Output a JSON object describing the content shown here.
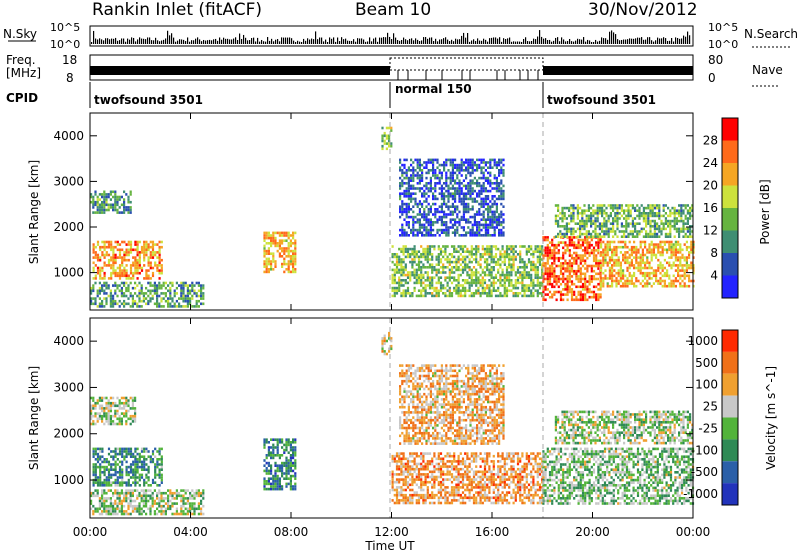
{
  "header": {
    "station": "Rankin Inlet (fitACF)",
    "beam": "Beam 10",
    "date": "30/Nov/2012"
  },
  "noise_panel": {
    "left_label": "N.Sky",
    "left_ticks": [
      "10^5",
      "10^0"
    ],
    "right_ticks": [
      "10^5",
      "10^0"
    ],
    "right_label": "N.Search"
  },
  "freq_panel": {
    "left_label_1": "Freq.",
    "left_label_2": "[MHz]",
    "left_ticks": [
      "18",
      "8"
    ],
    "right_ticks": [
      "80",
      "0"
    ],
    "right_label": "Nave"
  },
  "cpid": {
    "label": "CPID",
    "segments": [
      {
        "name": "twofsound 3501",
        "start_hour": 0,
        "end_hour": 12
      },
      {
        "name": "normal 150",
        "start_hour": 12,
        "end_hour": 18.1
      },
      {
        "name": "twofsound 3501",
        "start_hour": 18.1,
        "end_hour": 24
      }
    ]
  },
  "chart_data": [
    {
      "type": "heatmap",
      "panel": "power",
      "ylabel": "Slant Range [km]",
      "yticks": [
        "1000",
        "2000",
        "3000",
        "4000"
      ],
      "ylim": [
        180,
        4500
      ],
      "xlim": [
        0,
        24
      ],
      "colorbar_label": "Power [dB]",
      "colorbar_ticks": [
        "4",
        "8",
        "12",
        "16",
        "20",
        "24",
        "28"
      ],
      "colors": [
        "#2323ff",
        "#2a4fb0",
        "#3f8e73",
        "#66b440",
        "#cde23c",
        "#f5a623",
        "#ff6a1a",
        "#ff0000"
      ],
      "regions": [
        {
          "t0": 0.1,
          "t1": 2.9,
          "r0": 900,
          "r1": 1700,
          "intensity": 0.75
        },
        {
          "t0": 0.0,
          "t1": 1.6,
          "r0": 2300,
          "r1": 2800,
          "intensity": 0.3
        },
        {
          "t0": 0.0,
          "t1": 4.5,
          "r0": 250,
          "r1": 800,
          "intensity": 0.35
        },
        {
          "t0": 6.9,
          "t1": 8.2,
          "r0": 1000,
          "r1": 1900,
          "intensity": 0.7
        },
        {
          "t0": 11.6,
          "t1": 12.0,
          "r0": 3700,
          "r1": 4200,
          "intensity": 0.5
        },
        {
          "t0": 12.0,
          "t1": 18.0,
          "r0": 500,
          "r1": 1600,
          "intensity": 0.45
        },
        {
          "t0": 12.3,
          "t1": 16.5,
          "r0": 1800,
          "r1": 3500,
          "intensity": 0.15
        },
        {
          "t0": 18.0,
          "t1": 20.3,
          "r0": 400,
          "r1": 1800,
          "intensity": 0.85
        },
        {
          "t0": 20.3,
          "t1": 24.0,
          "r0": 700,
          "r1": 1700,
          "intensity": 0.7
        },
        {
          "t0": 18.5,
          "t1": 24.0,
          "r0": 1800,
          "r1": 2500,
          "intensity": 0.4
        }
      ]
    },
    {
      "type": "heatmap",
      "panel": "velocity",
      "ylabel": "Slant Range [km]",
      "yticks": [
        "1000",
        "2000",
        "3000",
        "4000"
      ],
      "ylim": [
        180,
        4500
      ],
      "xlim": [
        0,
        24
      ],
      "colorbar_label": "Velocity [m s^-1]",
      "colorbar_ticks": [
        "1000",
        "500",
        "100",
        "25",
        "-25",
        "-100",
        "-500",
        "-1000"
      ],
      "colors": [
        "#2233bb",
        "#2a5fa8",
        "#2f8a55",
        "#52b33a",
        "#c8c8c8",
        "#f0a030",
        "#f07018",
        "#ff2a00"
      ],
      "regions": [
        {
          "t0": 0.1,
          "t1": 2.9,
          "r0": 900,
          "r1": 1700,
          "intensity": 0.3
        },
        {
          "t0": 0.0,
          "t1": 1.8,
          "r0": 2200,
          "r1": 2800,
          "intensity": 0.5
        },
        {
          "t0": 0.0,
          "t1": 4.5,
          "r0": 250,
          "r1": 800,
          "intensity": 0.5
        },
        {
          "t0": 6.9,
          "t1": 8.2,
          "r0": 800,
          "r1": 1900,
          "intensity": 0.25
        },
        {
          "t0": 11.6,
          "t1": 12.0,
          "r0": 3700,
          "r1": 4200,
          "intensity": 0.6
        },
        {
          "t0": 12.0,
          "t1": 18.0,
          "r0": 500,
          "r1": 1600,
          "intensity": 0.75
        },
        {
          "t0": 12.3,
          "t1": 16.5,
          "r0": 1800,
          "r1": 3500,
          "intensity": 0.7
        },
        {
          "t0": 18.0,
          "t1": 24.0,
          "r0": 500,
          "r1": 1700,
          "intensity": 0.45
        },
        {
          "t0": 18.5,
          "t1": 24.0,
          "r0": 1800,
          "r1": 2500,
          "intensity": 0.5
        }
      ]
    }
  ],
  "x_axis": {
    "ticks": [
      "00:00",
      "04:00",
      "08:00",
      "12:00",
      "16:00",
      "20:00",
      "00:00"
    ],
    "label": "Time UT"
  }
}
